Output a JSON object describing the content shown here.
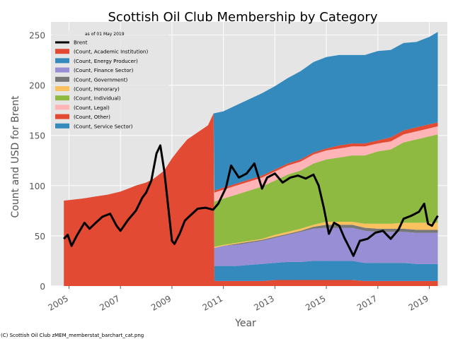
{
  "chart_data": {
    "type": "area",
    "title": "Scottish Oil Club Membership by Category",
    "subtitle": "as of 01 May 2019",
    "xlabel": "Year",
    "ylabel": "Count and USD for Brent",
    "xlim": [
      2004.3,
      2019.7
    ],
    "ylim": [
      0,
      263
    ],
    "x_ticks": [
      "2005",
      "2007",
      "2009",
      "2011",
      "2013",
      "2015",
      "2017",
      "2019"
    ],
    "y_ticks": [
      0,
      50,
      100,
      150,
      200,
      250
    ],
    "grid": true,
    "legend_position": "top-left",
    "x": [
      2004.8,
      2005.5,
      2006.0,
      2006.5,
      2007.0,
      2007.3,
      2007.6,
      2008.0,
      2008.3,
      2008.7,
      2009.0,
      2009.3,
      2009.6,
      2010.0,
      2010.4,
      2010.62,
      2010.65,
      2011.0,
      2011.5,
      2012.0,
      2012.5,
      2013.0,
      2013.5,
      2014.0,
      2014.5,
      2015.0,
      2015.5,
      2016.0,
      2016.5,
      2017.0,
      2017.5,
      2018.0,
      2018.5,
      2019.0,
      2019.33
    ],
    "series": [
      {
        "name": "(Count, Academic Institution)",
        "color": "#E24A33",
        "values": [
          85,
          87,
          89,
          91,
          94,
          97,
          100,
          103,
          107,
          115,
          127,
          137,
          146,
          153,
          160,
          172,
          5,
          5,
          5,
          5,
          5,
          6,
          6,
          6,
          6,
          6,
          6,
          6,
          5,
          5,
          5,
          5,
          5,
          5,
          5
        ]
      },
      {
        "name": "(Count, Energy Producer)",
        "color": "#348ABD",
        "values": [
          0,
          0,
          0,
          0,
          0,
          0,
          0,
          0,
          0,
          0,
          0,
          0,
          0,
          0,
          0,
          0,
          15,
          15,
          15,
          16,
          17,
          17,
          18,
          18,
          19,
          19,
          19,
          19,
          18,
          18,
          18,
          18,
          17,
          17,
          17
        ]
      },
      {
        "name": "(Count, Finance Sector)",
        "color": "#988ED5",
        "values": [
          0,
          0,
          0,
          0,
          0,
          0,
          0,
          0,
          0,
          0,
          0,
          0,
          0,
          0,
          0,
          0,
          18,
          20,
          21,
          22,
          23,
          25,
          27,
          30,
          32,
          33,
          33,
          33,
          32,
          31,
          31,
          31,
          31,
          31,
          31
        ]
      },
      {
        "name": "(Count, Government)",
        "color": "#777777",
        "values": [
          0,
          0,
          0,
          0,
          0,
          0,
          0,
          0,
          0,
          0,
          0,
          0,
          0,
          0,
          0,
          0,
          0,
          0,
          1,
          1,
          1,
          1,
          1,
          1,
          2,
          3,
          3,
          3,
          3,
          3,
          3,
          3,
          3,
          3,
          3
        ]
      },
      {
        "name": "(Count, Honorary)",
        "color": "#FBC15E",
        "values": [
          0,
          0,
          0,
          0,
          0,
          0,
          0,
          0,
          0,
          0,
          0,
          0,
          0,
          0,
          0,
          0,
          1,
          1,
          1,
          1,
          1,
          2,
          2,
          2,
          2,
          3,
          3,
          3,
          4,
          5,
          5,
          6,
          7,
          7,
          7
        ]
      },
      {
        "name": "(Count, Individual)",
        "color": "#8EBA42",
        "values": [
          0,
          0,
          0,
          0,
          0,
          0,
          0,
          0,
          0,
          0,
          0,
          0,
          0,
          0,
          0,
          0,
          45,
          46,
          48,
          50,
          52,
          54,
          57,
          58,
          61,
          62,
          64,
          66,
          68,
          72,
          74,
          80,
          83,
          86,
          88
        ]
      },
      {
        "name": "(Count, Legal)",
        "color": "#FFB5B8",
        "values": [
          0,
          0,
          0,
          0,
          0,
          0,
          0,
          0,
          0,
          0,
          0,
          0,
          0,
          0,
          0,
          0,
          9,
          9,
          9,
          9,
          9,
          9,
          9,
          9,
          9,
          9,
          9,
          9,
          9,
          8,
          8,
          8,
          8,
          8,
          8
        ]
      },
      {
        "name": "(Count, Other)",
        "color": "#E24A33",
        "values": [
          0,
          0,
          0,
          0,
          0,
          0,
          0,
          0,
          0,
          0,
          0,
          0,
          0,
          0,
          0,
          0,
          2,
          2,
          2,
          2,
          2,
          2,
          2,
          2,
          2,
          2,
          3,
          3,
          3,
          3,
          4,
          4,
          4,
          4,
          4
        ]
      },
      {
        "name": "(Count, Service Sector)",
        "color": "#348ABD",
        "values": [
          0,
          0,
          0,
          0,
          0,
          0,
          0,
          0,
          0,
          0,
          0,
          0,
          0,
          0,
          0,
          0,
          77,
          76,
          78,
          80,
          82,
          83,
          85,
          88,
          90,
          91,
          90,
          88,
          88,
          89,
          87,
          87,
          85,
          87,
          90
        ]
      }
    ],
    "brent": {
      "name": "Brent",
      "color": "#000000",
      "x": [
        2004.8,
        2004.95,
        2005.1,
        2005.3,
        2005.6,
        2005.8,
        2006.0,
        2006.3,
        2006.6,
        2006.85,
        2007.0,
        2007.3,
        2007.6,
        2007.85,
        2008.0,
        2008.2,
        2008.4,
        2008.55,
        2008.7,
        2008.85,
        2009.0,
        2009.1,
        2009.3,
        2009.5,
        2009.7,
        2010.0,
        2010.3,
        2010.6,
        2010.8,
        2011.1,
        2011.3,
        2011.6,
        2011.9,
        2012.2,
        2012.5,
        2012.7,
        2013.0,
        2013.3,
        2013.6,
        2013.9,
        2014.2,
        2014.5,
        2014.7,
        2014.9,
        2015.1,
        2015.3,
        2015.5,
        2015.7,
        2015.9,
        2016.05,
        2016.3,
        2016.6,
        2016.9,
        2017.2,
        2017.5,
        2017.8,
        2018.0,
        2018.3,
        2018.6,
        2018.8,
        2018.95,
        2019.1,
        2019.33
      ],
      "values": [
        47,
        51,
        40,
        50,
        63,
        57,
        62,
        69,
        72,
        60,
        55,
        66,
        75,
        88,
        93,
        105,
        132,
        140,
        115,
        80,
        45,
        42,
        52,
        65,
        70,
        77,
        78,
        76,
        82,
        98,
        120,
        108,
        112,
        122,
        97,
        108,
        112,
        103,
        108,
        110,
        107,
        111,
        100,
        78,
        52,
        63,
        60,
        48,
        38,
        30,
        45,
        47,
        53,
        55,
        47,
        56,
        67,
        70,
        74,
        82,
        62,
        60,
        70
      ]
    }
  },
  "footer": {
    "credit": "(C) Scottish Oil Club zMEM_memberstat_barchart_cat.png"
  }
}
